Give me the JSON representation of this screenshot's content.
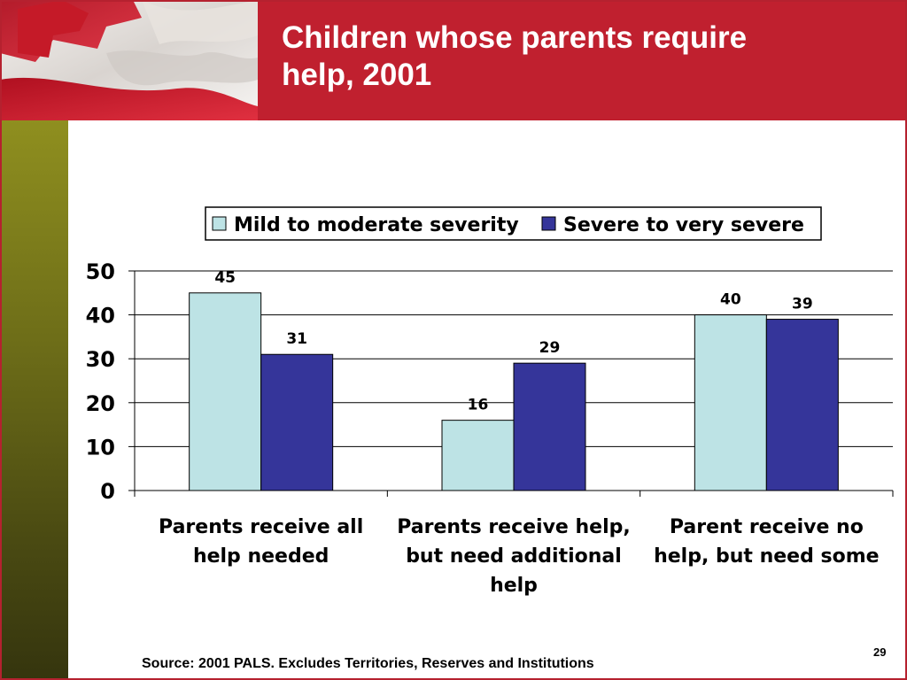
{
  "slide": {
    "title_line1": "Children whose parents require",
    "title_line2": "help, 2001",
    "source": "Source: 2001 PALS.  Excludes Territories, Reserves and Institutions",
    "page_number": "29"
  },
  "colors": {
    "header": "#c0202f",
    "sidebar": "#6d6d18",
    "series_mild": "#bde3e5",
    "series_severe": "#35359a"
  },
  "chart_data": {
    "type": "bar",
    "title": "",
    "xlabel": "",
    "ylabel": "",
    "ylim": [
      0,
      50
    ],
    "yticks": [
      0,
      10,
      20,
      30,
      40,
      50
    ],
    "grid": true,
    "legend_position": "top",
    "categories": [
      [
        "Parents receive all",
        "help needed"
      ],
      [
        "Parents receive help,",
        "but need additional",
        "help"
      ],
      [
        "Parent receive no",
        "help, but need some"
      ]
    ],
    "series": [
      {
        "name": "Mild to moderate severity",
        "values": [
          45,
          16,
          40
        ],
        "color": "#bde3e5"
      },
      {
        "name": "Severe to very severe",
        "values": [
          31,
          29,
          39
        ],
        "color": "#35359a"
      }
    ]
  }
}
